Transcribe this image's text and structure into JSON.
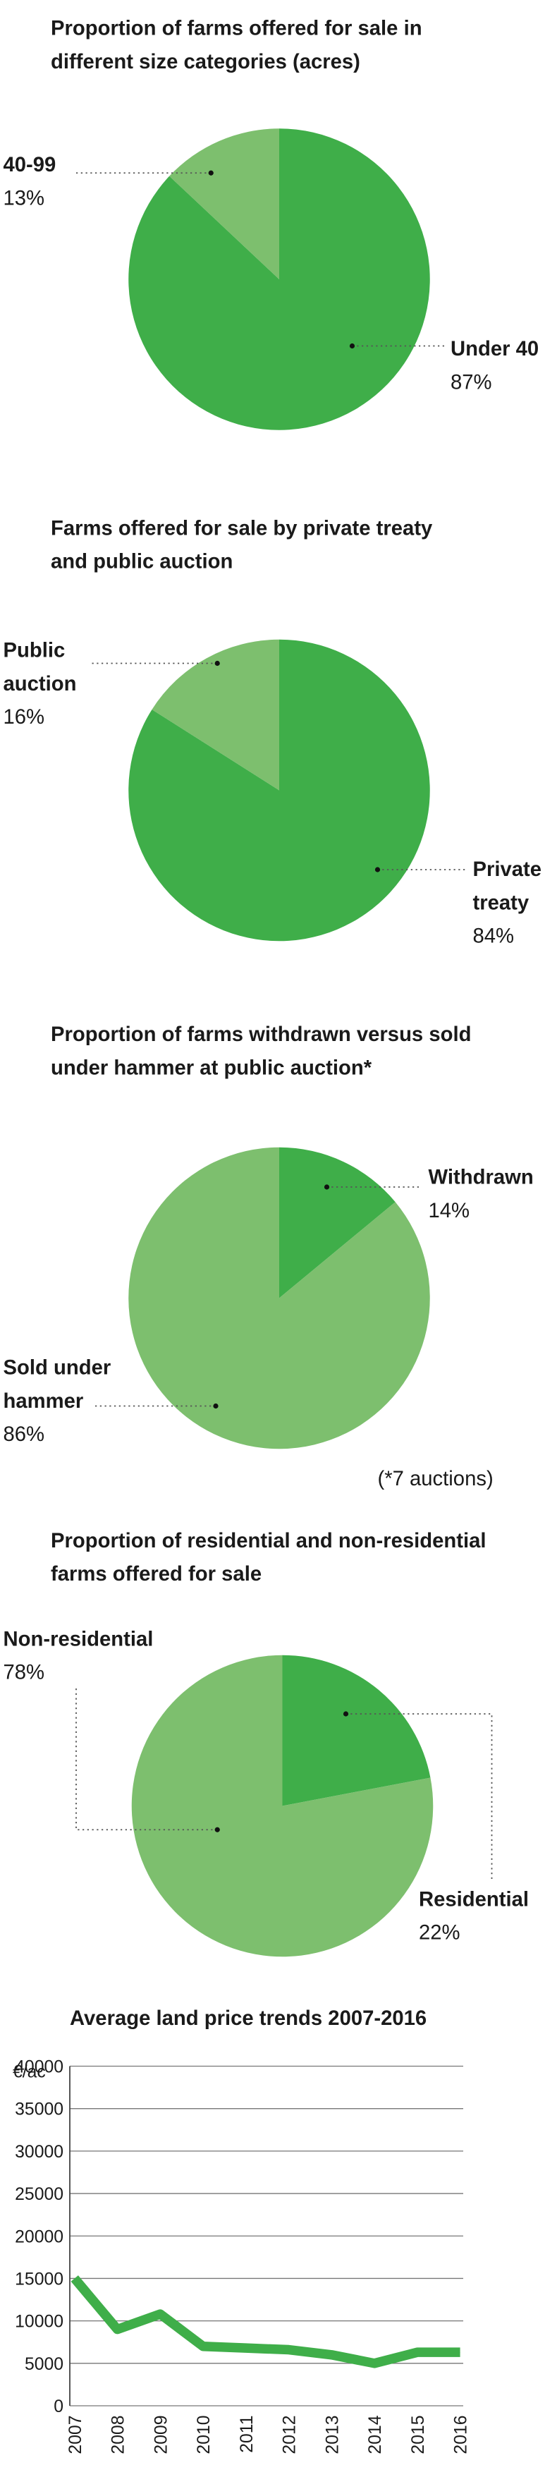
{
  "chart_data": [
    {
      "type": "pie",
      "title": "Proportion of farms offered for sale in different size categories (acres)",
      "categories": [
        "Under 40",
        "40-99"
      ],
      "values": [
        87,
        13
      ],
      "value_labels": [
        "87%",
        "13%"
      ],
      "colors": [
        "#3fae49",
        "#7dbf6e"
      ]
    },
    {
      "type": "pie",
      "title": "Farms offered for sale by private treaty and public auction",
      "categories": [
        "Private treaty",
        "Public auction"
      ],
      "values": [
        84,
        16
      ],
      "value_labels": [
        "84%",
        "16%"
      ],
      "colors": [
        "#3fae49",
        "#7dbf6e"
      ]
    },
    {
      "type": "pie",
      "title": "Proportion of farms withdrawn versus sold under hammer at public auction*",
      "categories": [
        "Withdrawn",
        "Sold under hammer"
      ],
      "values": [
        14,
        86
      ],
      "value_labels": [
        "14%",
        "86%"
      ],
      "colors": [
        "#3fae49",
        "#7dbf6e"
      ],
      "note": "(*7 auctions)"
    },
    {
      "type": "pie",
      "title": "Proportion of residential and non-residential farms offered for sale",
      "categories": [
        "Residential",
        "Non-residential"
      ],
      "values": [
        22,
        78
      ],
      "value_labels": [
        "22%",
        "78%"
      ],
      "colors": [
        "#3fae49",
        "#7dbf6e"
      ]
    },
    {
      "type": "line",
      "title": "Average land price trends 2007-2016",
      "ylabel": "€/ac",
      "categories": [
        "2007",
        "2008",
        "2009",
        "2010",
        "2011",
        "2012",
        "2013",
        "2014",
        "2015",
        "2016"
      ],
      "series": [
        {
          "color": "#3fae49",
          "values": [
            15000,
            9000,
            10800,
            7000,
            6800,
            6600,
            6000,
            5000,
            6300,
            6300
          ]
        }
      ],
      "ylim": [
        0,
        40000
      ],
      "yticks": [
        0,
        5000,
        10000,
        15000,
        20000,
        25000,
        30000,
        35000,
        40000
      ],
      "grid": true
    }
  ]
}
